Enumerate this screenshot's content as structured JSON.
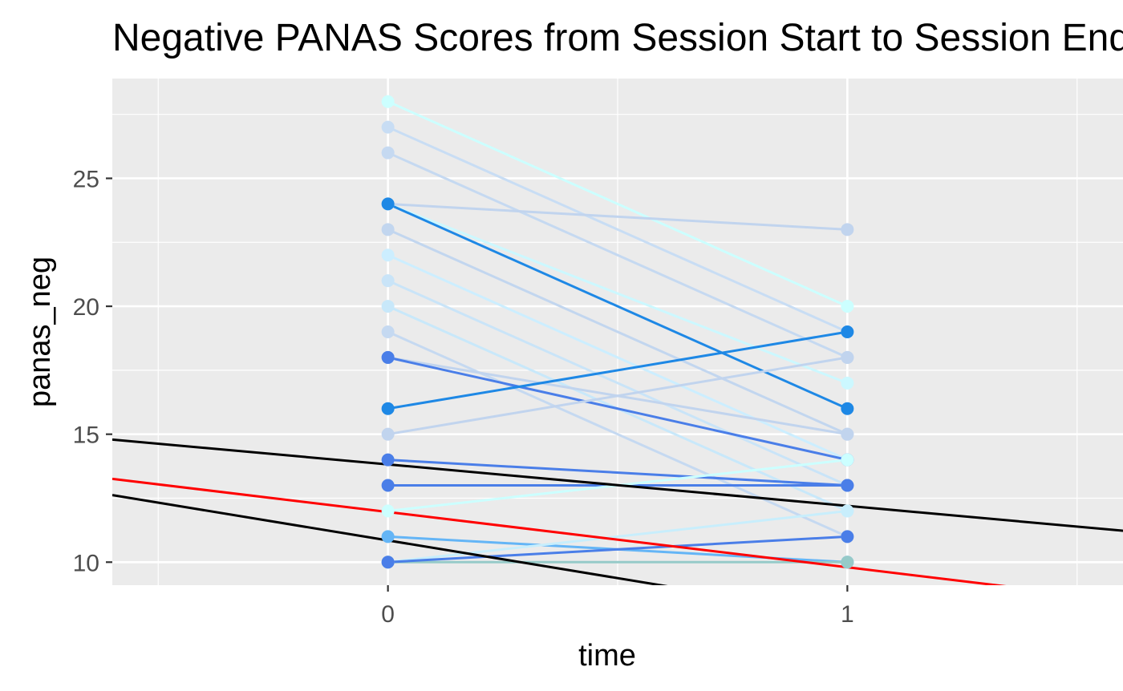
{
  "chart_data": {
    "type": "line",
    "title": "Negative PANAS Scores from Session Start to Session End",
    "xlabel": "time",
    "ylabel": "panas_neg",
    "xlim": [
      -0.6,
      1.6
    ],
    "ylim": [
      9.1,
      28.9
    ],
    "x_ticks": [
      0,
      1
    ],
    "x_tick_labels": [
      "0",
      "1"
    ],
    "y_ticks": [
      10,
      15,
      20,
      25
    ],
    "y_tick_labels": [
      "10",
      "15",
      "20",
      "25"
    ],
    "x_minor_grid": [
      -0.5,
      0.5,
      1.5
    ],
    "y_minor_grid": [
      12.5,
      17.5,
      22.5,
      27.5
    ],
    "grid": true,
    "legend": "none",
    "colors": {
      "panel": "#ebebeb",
      "grid": "#ffffff",
      "tick_mark": "#333333"
    },
    "participants": [
      {
        "values": [
          28,
          20
        ],
        "color": "#ccffff"
      },
      {
        "values": [
          27,
          19
        ],
        "color": "#c8ddf4"
      },
      {
        "values": [
          26,
          18
        ],
        "color": "#c5d9f1"
      },
      {
        "values": [
          24,
          23
        ],
        "color": "#c1d4ee"
      },
      {
        "values": [
          24,
          17
        ],
        "color": "#ccf8ff"
      },
      {
        "values": [
          24,
          16
        ],
        "color": "#1e88e5"
      },
      {
        "values": [
          23,
          15
        ],
        "color": "#c2d6ef"
      },
      {
        "values": [
          22,
          14
        ],
        "color": "#cceeff"
      },
      {
        "values": [
          21,
          13
        ],
        "color": "#c9e4f8"
      },
      {
        "values": [
          20,
          12
        ],
        "color": "#c8e8fa"
      },
      {
        "values": [
          19,
          11
        ],
        "color": "#c5d9f1"
      },
      {
        "values": [
          18,
          15
        ],
        "color": "#c1d4ee"
      },
      {
        "values": [
          18,
          14
        ],
        "color": "#4a7ee8"
      },
      {
        "values": [
          16,
          19
        ],
        "color": "#1e88e5"
      },
      {
        "values": [
          15,
          18
        ],
        "color": "#c1d4ee"
      },
      {
        "values": [
          14,
          13
        ],
        "color": "#4a7ee8"
      },
      {
        "values": [
          13,
          13
        ],
        "color": "#4a7ee8"
      },
      {
        "values": [
          12,
          14
        ],
        "color": "#ccffff"
      },
      {
        "values": [
          11,
          10
        ],
        "color": "#64b5f6"
      },
      {
        "values": [
          10,
          12
        ],
        "color": "#c8eefc"
      },
      {
        "values": [
          10,
          10
        ],
        "color": "#96cac8"
      },
      {
        "values": [
          10,
          11
        ],
        "color": "#4a7ee8"
      }
    ],
    "fit_lines": [
      {
        "intercept": 13.82,
        "slope": -1.62,
        "color": "#000000"
      },
      {
        "intercept": 11.96,
        "slope": -2.16,
        "color": "#ff0000"
      },
      {
        "intercept": 10.85,
        "slope": -2.95,
        "color": "#000000"
      }
    ]
  }
}
